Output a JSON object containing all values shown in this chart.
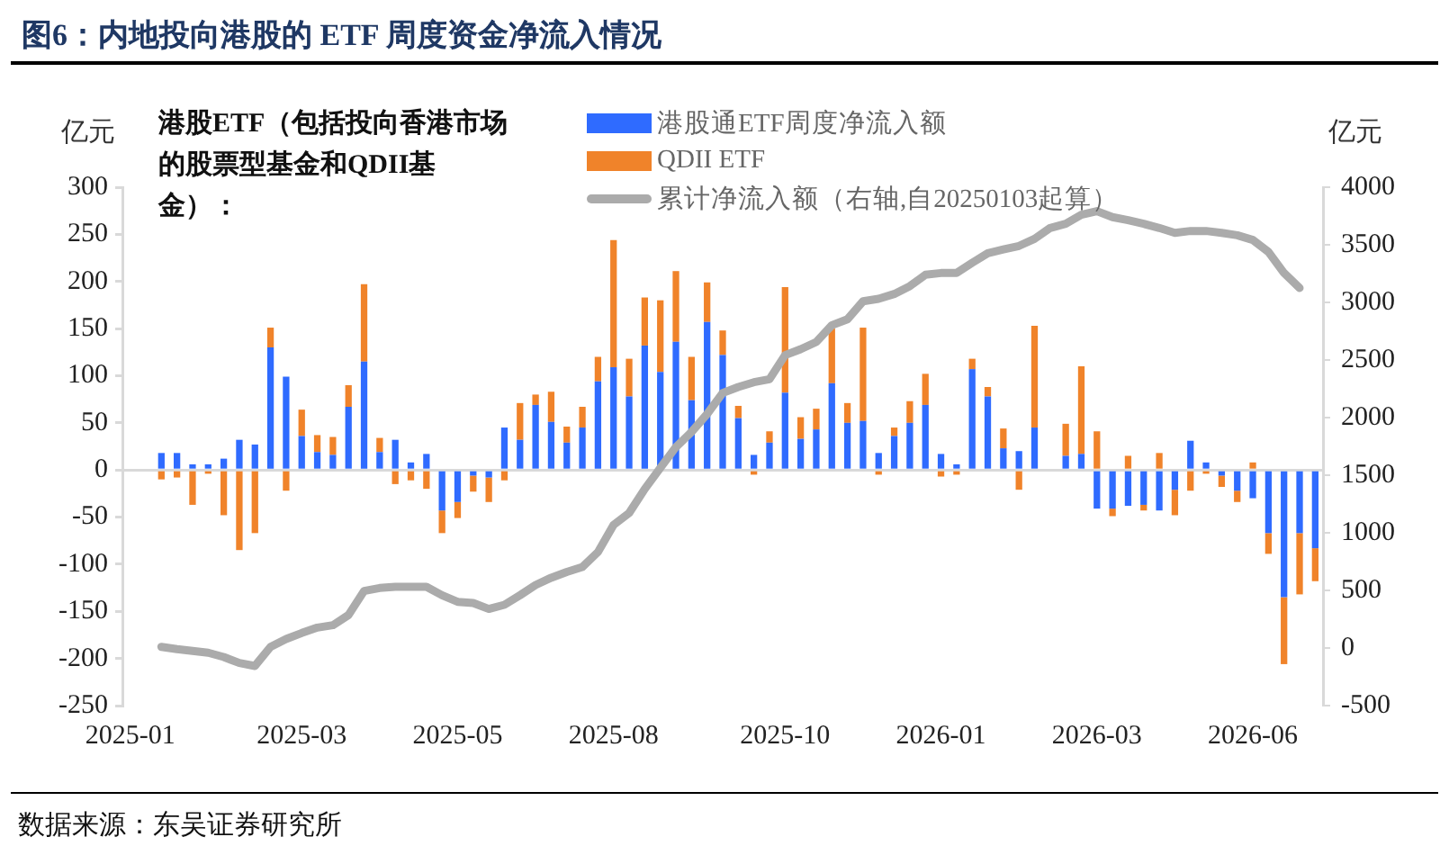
{
  "chart_data": {
    "type": "bar",
    "title": "图6：内地投向港股的 ETF 周度资金净流入情况",
    "ylabel": "亿元",
    "y2label": "亿元",
    "stacked": true,
    "legend": "top",
    "annotations": [
      "港股ETF（包括投向香港市场的股票型基金和QDII基金）：",
      "数据来源：东吴证券研究所"
    ],
    "categories": [
      "2025-01",
      null,
      null,
      null,
      null,
      null,
      null,
      null,
      null,
      null,
      null,
      "2025-03",
      null,
      null,
      null,
      null,
      null,
      null,
      null,
      null,
      null,
      "2025-05",
      null,
      null,
      null,
      null,
      null,
      null,
      null,
      null,
      null,
      "2025-08",
      null,
      null,
      null,
      null,
      null,
      null,
      null,
      null,
      null,
      null,
      "2025-10",
      null,
      null,
      null,
      null,
      null,
      null,
      null,
      null,
      null,
      "2026-01",
      null,
      null,
      null,
      null,
      null,
      null,
      null,
      null,
      null,
      "2026-03",
      null,
      null,
      null,
      null,
      null,
      null,
      null,
      null,
      null,
      "2026-06",
      null,
      null,
      null,
      null
    ],
    "ylim": [
      -250,
      300
    ],
    "yticks": [
      -250,
      -200,
      -150,
      -100,
      -50,
      0,
      50,
      100,
      150,
      200,
      250,
      300
    ],
    "y2lim": [
      -500,
      4000
    ],
    "y2ticks": [
      -500,
      0,
      500,
      1000,
      1500,
      2000,
      2500,
      3000,
      3500,
      4000
    ],
    "series": [
      {
        "name": "港股通ETF周度净流入额",
        "color": "#2f6bff",
        "values": [
          null,
          null,
          18,
          18,
          6,
          6,
          12,
          32,
          27,
          130,
          99,
          36,
          19,
          16,
          67,
          115,
          19,
          32,
          8,
          17,
          -43,
          -34,
          -6,
          -8,
          45,
          32,
          69,
          51,
          29,
          45,
          94,
          109,
          78,
          132,
          104,
          136,
          74,
          157,
          122,
          55,
          16,
          29,
          82,
          33,
          43,
          92,
          50,
          52,
          18,
          36,
          50,
          69,
          17,
          6,
          107,
          78,
          23,
          20,
          45,
          null,
          15,
          17,
          -41,
          -41,
          -38,
          -37,
          -43,
          -21,
          31,
          8,
          -6,
          -22,
          -30,
          -67,
          -135,
          -67,
          -83
        ]
      },
      {
        "name": "QDII ETF",
        "color": "#f0832a",
        "values": [
          null,
          null,
          -10,
          -8,
          -37,
          -4,
          -48,
          -85,
          -67,
          21,
          -22,
          28,
          18,
          19,
          23,
          82,
          15,
          -15,
          -11,
          -20,
          -24,
          -17,
          -17,
          -26,
          -11,
          39,
          11,
          32,
          17,
          22,
          26,
          135,
          40,
          51,
          76,
          75,
          46,
          42,
          26,
          13,
          -5,
          12,
          112,
          23,
          22,
          58,
          21,
          99,
          -5,
          9,
          23,
          33,
          -7,
          -5,
          11,
          10,
          21,
          -21,
          108,
          null,
          34,
          93,
          41,
          -8,
          15,
          -6,
          18,
          -27,
          -22,
          -4,
          -12,
          -12,
          8,
          -22,
          -71,
          -65,
          -35
        ]
      },
      {
        "name": "累计净流入额（右轴,自20250103起算）",
        "color": "#ababab",
        "type": "line",
        "axis": "y2",
        "values": [
          null,
          null,
          10,
          -10,
          -26,
          -41,
          -78,
          -130,
          -156,
          10,
          78,
          130,
          177,
          198,
          286,
          495,
          521,
          531,
          531,
          531,
          458,
          401,
          391,
          339,
          375,
          458,
          547,
          610,
          660,
          703,
          833,
          1068,
          1172,
          1380,
          1563,
          1745,
          1875,
          2031,
          2214,
          2266,
          2307,
          2333,
          2542,
          2594,
          2656,
          2802,
          2854,
          3010,
          3031,
          3073,
          3141,
          3240,
          3255,
          3255,
          3344,
          3427,
          3460,
          3490,
          3552,
          3646,
          3682,
          3760,
          3792,
          3740,
          3714,
          3682,
          3646,
          3604,
          3620,
          3620,
          3604,
          3583,
          3542,
          3438,
          3255,
          3125,
          null
        ]
      }
    ]
  }
}
